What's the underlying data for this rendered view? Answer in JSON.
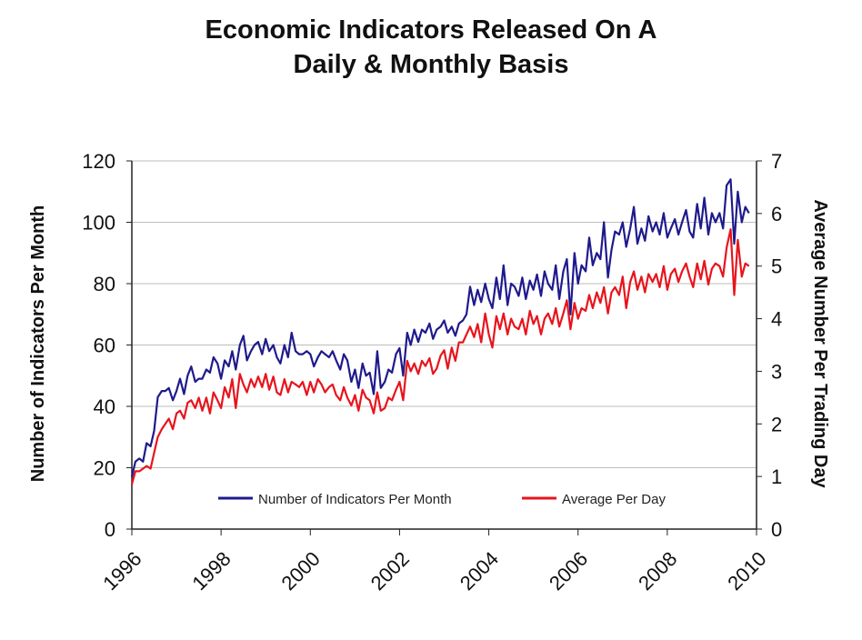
{
  "title": {
    "line1": "Economic Indicators Released On A",
    "line2": "Daily & Monthly Basis"
  },
  "colors": {
    "series_monthly": "#1f1a8c",
    "series_daily": "#e8141c",
    "grid": "#bdbdbd",
    "axis": "#222222"
  },
  "chart_data": {
    "type": "line",
    "ylabel": "Number of Indicators Per Month",
    "y2label": "Average Number Per Trading Day",
    "ylim": [
      0,
      120
    ],
    "y2lim": [
      0,
      7
    ],
    "y_ticks": [
      0,
      20,
      40,
      60,
      80,
      100,
      120
    ],
    "y2_ticks": [
      0,
      1,
      2,
      3,
      4,
      5,
      6,
      7
    ],
    "xlim": [
      1996,
      2010
    ],
    "x_ticks": [
      1996,
      1998,
      2000,
      2002,
      2004,
      2006,
      2008,
      2010
    ],
    "x_tick_labels": [
      "1996",
      "1998",
      "2000",
      "2002",
      "2004",
      "2006",
      "2008",
      "2010"
    ],
    "grid": "horizontal",
    "legend_position": "bottom-right",
    "series": [
      {
        "name": "Number of Indicators Per Month",
        "axis": "left",
        "x": [
          1996.0,
          1996.08,
          1996.17,
          1996.25,
          1996.33,
          1996.42,
          1996.5,
          1996.58,
          1996.67,
          1996.75,
          1996.83,
          1996.92,
          1997.0,
          1997.08,
          1997.17,
          1997.25,
          1997.33,
          1997.42,
          1997.5,
          1997.58,
          1997.67,
          1997.75,
          1997.83,
          1997.92,
          1998.0,
          1998.08,
          1998.17,
          1998.25,
          1998.33,
          1998.42,
          1998.5,
          1998.58,
          1998.67,
          1998.75,
          1998.83,
          1998.92,
          1999.0,
          1999.08,
          1999.17,
          1999.25,
          1999.33,
          1999.42,
          1999.5,
          1999.58,
          1999.67,
          1999.75,
          1999.83,
          1999.92,
          2000.0,
          2000.08,
          2000.17,
          2000.25,
          2000.33,
          2000.42,
          2000.5,
          2000.58,
          2000.67,
          2000.75,
          2000.83,
          2000.92,
          2001.0,
          2001.08,
          2001.17,
          2001.25,
          2001.33,
          2001.42,
          2001.5,
          2001.58,
          2001.67,
          2001.75,
          2001.83,
          2001.92,
          2002.0,
          2002.08,
          2002.17,
          2002.25,
          2002.33,
          2002.42,
          2002.5,
          2002.58,
          2002.67,
          2002.75,
          2002.83,
          2002.92,
          2003.0,
          2003.08,
          2003.17,
          2003.25,
          2003.33,
          2003.42,
          2003.5,
          2003.58,
          2003.67,
          2003.75,
          2003.83,
          2003.92,
          2004.0,
          2004.08,
          2004.17,
          2004.25,
          2004.33,
          2004.42,
          2004.5,
          2004.58,
          2004.67,
          2004.75,
          2004.83,
          2004.92,
          2005.0,
          2005.08,
          2005.17,
          2005.25,
          2005.33,
          2005.42,
          2005.5,
          2005.58,
          2005.67,
          2005.75,
          2005.83,
          2005.92,
          2006.0,
          2006.08,
          2006.17,
          2006.25,
          2006.33,
          2006.42,
          2006.5,
          2006.58,
          2006.67,
          2006.75,
          2006.83,
          2006.92,
          2007.0,
          2007.08,
          2007.17,
          2007.25,
          2007.33,
          2007.42,
          2007.5,
          2007.58,
          2007.67,
          2007.75,
          2007.83,
          2007.92,
          2008.0,
          2008.08,
          2008.17,
          2008.25,
          2008.33,
          2008.42,
          2008.5,
          2008.58,
          2008.67,
          2008.75,
          2008.83,
          2008.92,
          2009.0,
          2009.08,
          2009.17,
          2009.25,
          2009.33,
          2009.42,
          2009.5,
          2009.58,
          2009.67,
          2009.75,
          2009.83
        ],
        "values": [
          17,
          22,
          23,
          22,
          28,
          27,
          32,
          43,
          45,
          45,
          46,
          42,
          45,
          49,
          44,
          50,
          53,
          48,
          49,
          49,
          52,
          51,
          56,
          54,
          49,
          55,
          53,
          58,
          52,
          60,
          63,
          55,
          58,
          60,
          61,
          57,
          62,
          58,
          60,
          56,
          54,
          60,
          56,
          64,
          58,
          57,
          57,
          58,
          57,
          53,
          56,
          58,
          57,
          56,
          58,
          55,
          52,
          57,
          55,
          48,
          52,
          46,
          54,
          50,
          51,
          44,
          58,
          46,
          48,
          52,
          51,
          57,
          59,
          50,
          64,
          60,
          65,
          61,
          65,
          64,
          67,
          62,
          65,
          66,
          68,
          64,
          66,
          63,
          67,
          68,
          70,
          79,
          73,
          78,
          74,
          80,
          75,
          72,
          82,
          75,
          86,
          73,
          80,
          79,
          76,
          82,
          75,
          81,
          78,
          83,
          76,
          84,
          80,
          78,
          86,
          75,
          84,
          88,
          70,
          90,
          80,
          86,
          84,
          95,
          86,
          90,
          88,
          100,
          82,
          91,
          97,
          96,
          100,
          92,
          98,
          105,
          93,
          98,
          94,
          102,
          97,
          100,
          96,
          103,
          95,
          98,
          101,
          96,
          100,
          104,
          97,
          95,
          106,
          98,
          108,
          96,
          103,
          100,
          103,
          98,
          112,
          114,
          93,
          110,
          100,
          105,
          103
        ]
      },
      {
        "name": "Average Per Day",
        "axis": "right",
        "x": [
          1996.0,
          1996.08,
          1996.17,
          1996.25,
          1996.33,
          1996.42,
          1996.5,
          1996.58,
          1996.67,
          1996.75,
          1996.83,
          1996.92,
          1997.0,
          1997.08,
          1997.17,
          1997.25,
          1997.33,
          1997.42,
          1997.5,
          1997.58,
          1997.67,
          1997.75,
          1997.83,
          1997.92,
          1998.0,
          1998.08,
          1998.17,
          1998.25,
          1998.33,
          1998.42,
          1998.5,
          1998.58,
          1998.67,
          1998.75,
          1998.83,
          1998.92,
          1999.0,
          1999.08,
          1999.17,
          1999.25,
          1999.33,
          1999.42,
          1999.5,
          1999.58,
          1999.67,
          1999.75,
          1999.83,
          1999.92,
          2000.0,
          2000.08,
          2000.17,
          2000.25,
          2000.33,
          2000.42,
          2000.5,
          2000.58,
          2000.67,
          2000.75,
          2000.83,
          2000.92,
          2001.0,
          2001.08,
          2001.17,
          2001.25,
          2001.33,
          2001.42,
          2001.5,
          2001.58,
          2001.67,
          2001.75,
          2001.83,
          2001.92,
          2002.0,
          2002.08,
          2002.17,
          2002.25,
          2002.33,
          2002.42,
          2002.5,
          2002.58,
          2002.67,
          2002.75,
          2002.83,
          2002.92,
          2003.0,
          2003.08,
          2003.17,
          2003.25,
          2003.33,
          2003.42,
          2003.5,
          2003.58,
          2003.67,
          2003.75,
          2003.83,
          2003.92,
          2004.0,
          2004.08,
          2004.17,
          2004.25,
          2004.33,
          2004.42,
          2004.5,
          2004.58,
          2004.67,
          2004.75,
          2004.83,
          2004.92,
          2005.0,
          2005.08,
          2005.17,
          2005.25,
          2005.33,
          2005.42,
          2005.5,
          2005.58,
          2005.67,
          2005.75,
          2005.83,
          2005.92,
          2006.0,
          2006.08,
          2006.17,
          2006.25,
          2006.33,
          2006.42,
          2006.5,
          2006.58,
          2006.67,
          2006.75,
          2006.83,
          2006.92,
          2007.0,
          2007.08,
          2007.17,
          2007.25,
          2007.33,
          2007.42,
          2007.5,
          2007.58,
          2007.67,
          2007.75,
          2007.83,
          2007.92,
          2008.0,
          2008.08,
          2008.17,
          2008.25,
          2008.33,
          2008.42,
          2008.5,
          2008.58,
          2008.67,
          2008.75,
          2008.83,
          2008.92,
          2009.0,
          2009.08,
          2009.17,
          2009.25,
          2009.33,
          2009.42,
          2009.5,
          2009.58,
          2009.67,
          2009.75,
          2009.83
        ],
        "values": [
          0.85,
          1.1,
          1.1,
          1.15,
          1.2,
          1.15,
          1.45,
          1.75,
          1.9,
          2.0,
          2.1,
          1.9,
          2.2,
          2.25,
          2.1,
          2.4,
          2.45,
          2.3,
          2.5,
          2.25,
          2.5,
          2.2,
          2.6,
          2.45,
          2.3,
          2.7,
          2.5,
          2.85,
          2.3,
          2.95,
          2.75,
          2.6,
          2.85,
          2.7,
          2.9,
          2.7,
          2.95,
          2.65,
          2.9,
          2.6,
          2.55,
          2.85,
          2.6,
          2.8,
          2.75,
          2.7,
          2.8,
          2.55,
          2.8,
          2.6,
          2.85,
          2.75,
          2.6,
          2.7,
          2.75,
          2.55,
          2.45,
          2.7,
          2.5,
          2.35,
          2.55,
          2.25,
          2.65,
          2.5,
          2.45,
          2.2,
          2.6,
          2.25,
          2.3,
          2.5,
          2.45,
          2.65,
          2.8,
          2.45,
          3.2,
          3.0,
          3.15,
          2.95,
          3.2,
          3.1,
          3.25,
          2.95,
          3.05,
          3.3,
          3.4,
          3.05,
          3.45,
          3.2,
          3.55,
          3.55,
          3.7,
          3.85,
          3.65,
          3.9,
          3.55,
          4.1,
          3.7,
          3.45,
          4.05,
          3.8,
          4.1,
          3.7,
          4.0,
          3.85,
          3.8,
          4.0,
          3.7,
          4.15,
          3.9,
          4.05,
          3.7,
          4.0,
          4.1,
          3.9,
          4.2,
          3.85,
          4.1,
          4.35,
          3.8,
          4.3,
          4.0,
          4.2,
          4.15,
          4.45,
          4.2,
          4.5,
          4.3,
          4.6,
          4.1,
          4.5,
          4.6,
          4.45,
          4.8,
          4.2,
          4.7,
          4.9,
          4.55,
          4.8,
          4.5,
          4.85,
          4.7,
          4.85,
          4.6,
          5.0,
          4.55,
          4.85,
          4.95,
          4.7,
          4.9,
          5.05,
          4.8,
          4.6,
          5.05,
          4.75,
          5.1,
          4.65,
          4.95,
          5.05,
          5.0,
          4.8,
          5.35,
          5.7,
          4.45,
          5.5,
          4.8,
          5.05,
          5.0
        ]
      }
    ]
  }
}
